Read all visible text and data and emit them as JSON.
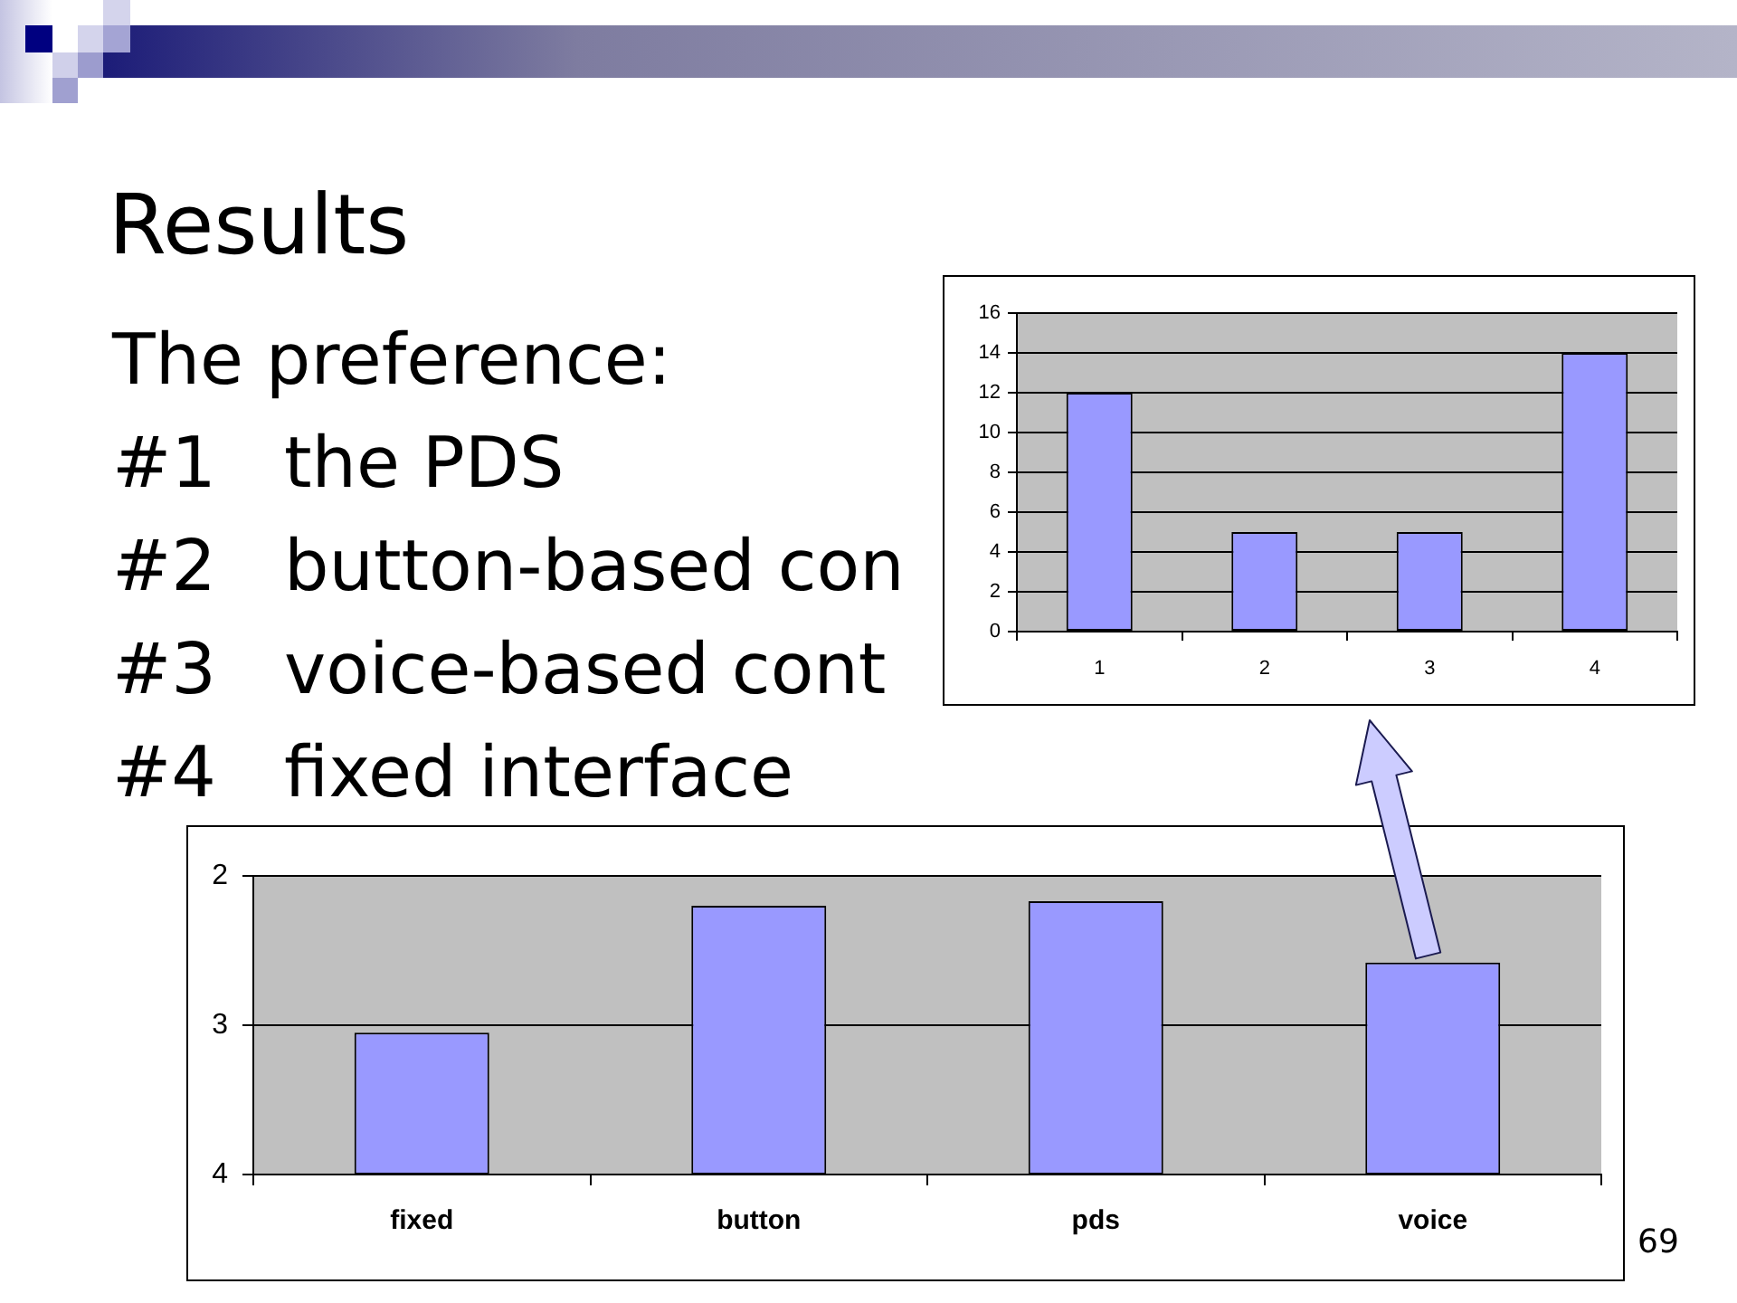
{
  "chart_data": [
    {
      "type": "other",
      "title": "Results",
      "subtitle": "The preference:",
      "annotations": [
        "#1\tthe PDS",
        "#2\tbutton-based con",
        "#3\tvoice-based cont",
        "#4\tfixed interface"
      ]
    },
    {
      "type": "bar",
      "categories": [
        "1",
        "2",
        "3",
        "4"
      ],
      "values": [
        12,
        5,
        5,
        14
      ],
      "color": "#9999ff",
      "ylim": [
        0,
        16
      ],
      "yticks": [
        0,
        2,
        4,
        6,
        8,
        10,
        12,
        14,
        16
      ],
      "grid": "y"
    },
    {
      "type": "bar",
      "categories": [
        "fixed",
        "button",
        "pds",
        "voice"
      ],
      "base": [
        4,
        4,
        4,
        4
      ],
      "values": [
        -0.95,
        -1.8,
        -1.83,
        -1.42
      ],
      "color": "#9999ff",
      "ylim": [
        4,
        2
      ],
      "yticks": [
        2,
        3,
        4
      ],
      "grid": "y",
      "annotations": [
        "69"
      ]
    }
  ]
}
